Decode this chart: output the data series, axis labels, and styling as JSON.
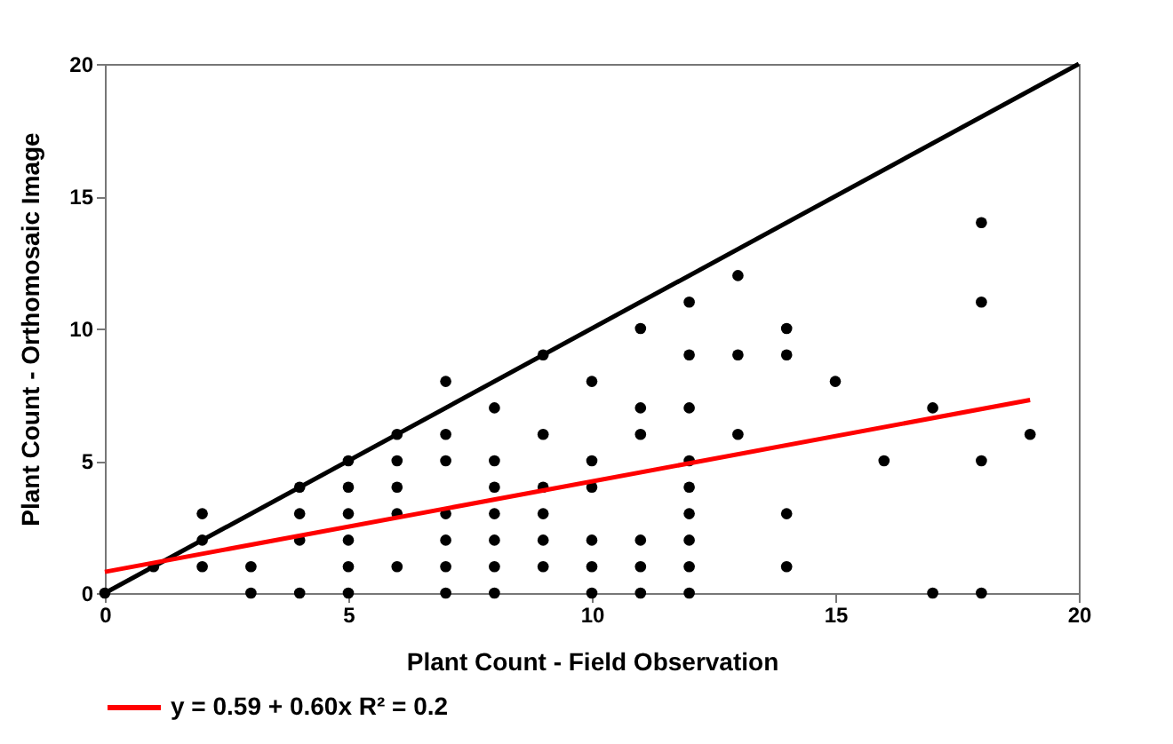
{
  "chart_data": {
    "type": "scatter",
    "xlabel": "Plant Count - Field Observation",
    "ylabel": "Plant Count - Orthomosaic Image",
    "xlim": [
      0,
      20
    ],
    "xticks": [
      0,
      5,
      10,
      15,
      20
    ],
    "ylim": [
      0,
      20
    ],
    "yticks": [
      0,
      5,
      10,
      15,
      20
    ],
    "grid": false,
    "legend": "bottom",
    "line_style": "solid",
    "series": [
      {
        "marker": "circle",
        "color": "#000000",
        "x": [
          0,
          1,
          2,
          2,
          2,
          3,
          3,
          4,
          4,
          4,
          4,
          5,
          5,
          5,
          5,
          5,
          5,
          6,
          6,
          6,
          6,
          6,
          7,
          7,
          7,
          7,
          7,
          7,
          7,
          8,
          8,
          8,
          8,
          8,
          8,
          8,
          9,
          9,
          9,
          9,
          9,
          9,
          10,
          10,
          10,
          10,
          10,
          10,
          11,
          11,
          11,
          11,
          11,
          11,
          12,
          12,
          12,
          12,
          12,
          12,
          12,
          12,
          12,
          13,
          13,
          13,
          14,
          14,
          14,
          14,
          15,
          16,
          17,
          17,
          18,
          18,
          18,
          18,
          19
        ],
        "values": [
          0,
          1,
          1,
          2,
          3,
          0,
          1,
          0,
          2,
          3,
          4,
          0,
          1,
          2,
          3,
          4,
          5,
          1,
          3,
          4,
          5,
          6,
          0,
          1,
          2,
          3,
          5,
          6,
          8,
          0,
          1,
          2,
          3,
          4,
          5,
          7,
          1,
          2,
          3,
          4,
          6,
          9,
          0,
          1,
          2,
          4,
          5,
          8,
          0,
          1,
          2,
          6,
          7,
          10,
          0,
          1,
          2,
          3,
          4,
          5,
          7,
          9,
          11,
          6,
          9,
          12,
          1,
          3,
          9,
          10,
          8,
          5,
          0,
          7,
          0,
          5,
          11,
          14,
          6
        ]
      },
      {
        "type": "line",
        "marker": "none",
        "color": "#000000",
        "x": [
          0,
          20
        ],
        "values": [
          0,
          20
        ]
      },
      {
        "type": "line",
        "marker": "none",
        "name": "y = 0.59 + 0.60x   R² = 0.2",
        "color": "#ff0000",
        "x": [
          0,
          19
        ],
        "values": [
          0.8,
          7.3
        ]
      }
    ]
  }
}
